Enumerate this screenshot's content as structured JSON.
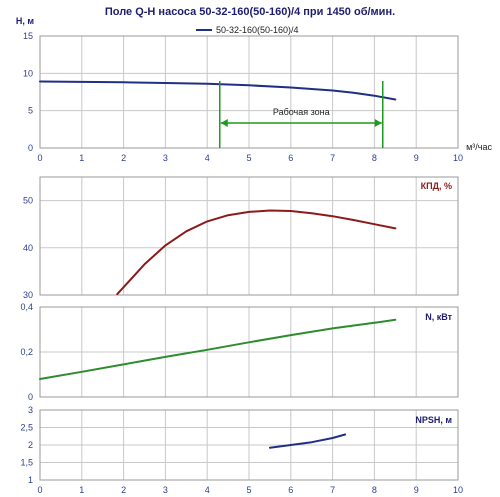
{
  "title": "Поле Q-H насоса 50-32-160(50-160)/4 при 1450 об/мин.",
  "legend_label": "50-32-160(50-160)/4",
  "x_unit_label": "м³/час",
  "colors": {
    "qh": "#1f2f86",
    "eff": "#8c1a1a",
    "power": "#2e8b2e",
    "npsh": "#1f2f86",
    "zone": "#1e9a1e",
    "axis_text": "#2c3f91"
  },
  "chart_data": [
    {
      "type": "line",
      "panel": "H",
      "ylabel": "H, м",
      "ylim": [
        0,
        15
      ],
      "yticks": [
        0,
        5,
        10,
        15
      ],
      "xlim": [
        0,
        10
      ],
      "xticks": [
        0,
        1,
        2,
        3,
        4,
        5,
        6,
        7,
        8,
        9,
        10
      ],
      "series": [
        {
          "name": "50-32-160(50-160)/4",
          "x": [
            0,
            1,
            2,
            3,
            4,
            5,
            6,
            7,
            7.5,
            8,
            8.5
          ],
          "y": [
            8.9,
            8.85,
            8.8,
            8.7,
            8.6,
            8.4,
            8.1,
            7.7,
            7.4,
            7.0,
            6.5
          ]
        }
      ],
      "annotation": {
        "text": "Рабочая зона",
        "x_start": 4.3,
        "x_end": 8.2
      }
    },
    {
      "type": "line",
      "panel": "efficiency",
      "ylabel": "КПД, %",
      "ylim": [
        30,
        55
      ],
      "yticks": [
        30,
        40,
        50
      ],
      "xlim": [
        0,
        10
      ],
      "series": [
        {
          "x": [
            1.85,
            2.5,
            3.0,
            3.5,
            4.0,
            4.5,
            5.0,
            5.5,
            6.0,
            6.5,
            7.0,
            7.5,
            8.0,
            8.5
          ],
          "y": [
            30.2,
            36.5,
            40.5,
            43.5,
            45.6,
            46.9,
            47.6,
            47.9,
            47.8,
            47.3,
            46.7,
            45.9,
            45.0,
            44.1
          ]
        }
      ]
    },
    {
      "type": "line",
      "panel": "power",
      "ylabel": "N, кВт",
      "ylim": [
        0,
        0.4
      ],
      "yticks": [
        0,
        0.2,
        0.4
      ],
      "ytick_labels": [
        "0",
        "0,2",
        "0,4"
      ],
      "xlim": [
        0,
        10
      ],
      "series": [
        {
          "x": [
            0,
            1,
            2,
            3,
            4,
            5,
            6,
            7,
            8,
            8.5
          ],
          "y": [
            0.08,
            0.112,
            0.145,
            0.178,
            0.21,
            0.243,
            0.275,
            0.305,
            0.33,
            0.343
          ]
        }
      ]
    },
    {
      "type": "line",
      "panel": "NPSH",
      "ylabel": "NPSH, м",
      "ylim": [
        1,
        3
      ],
      "yticks": [
        1,
        1.5,
        2,
        2.5,
        3
      ],
      "ytick_labels": [
        "1",
        "1,5",
        "2",
        "2,5",
        "3"
      ],
      "xlim": [
        0,
        10
      ],
      "series": [
        {
          "x": [
            5.5,
            6.0,
            6.5,
            7.0,
            7.3
          ],
          "y": [
            1.92,
            2.0,
            2.08,
            2.2,
            2.3
          ]
        }
      ]
    }
  ]
}
